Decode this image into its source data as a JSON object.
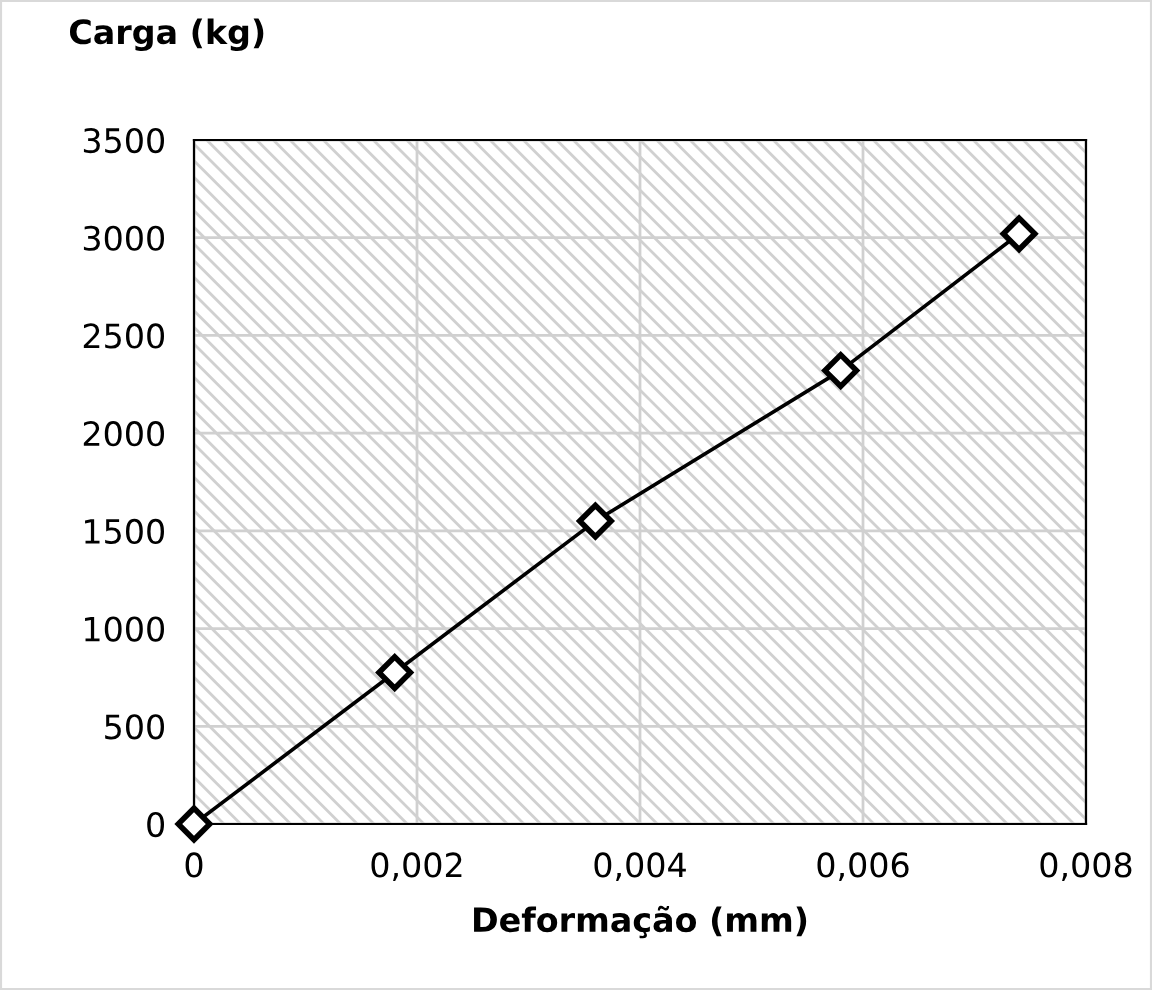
{
  "chart_data": {
    "type": "line",
    "xlabel": "Deformação (mm)",
    "ylabel": "Carga (kg)",
    "x": [
      0,
      0.0018,
      0.0036,
      0.0058,
      0.0074
    ],
    "series": [
      {
        "color": "#000000",
        "values": [
          0,
          775,
          1550,
          2320,
          3020
        ]
      }
    ],
    "xlim": [
      0,
      0.008
    ],
    "xticks": [
      0,
      {
        "value": 0.002,
        "label": "0,002"
      },
      {
        "value": 0.004,
        "label": "0,004"
      },
      {
        "value": 0.006,
        "label": "0,006"
      },
      {
        "value": 0.008,
        "label": "0,008"
      }
    ],
    "ylim": [
      0,
      3500
    ],
    "yticks": [
      0,
      500,
      1000,
      1500,
      2000,
      2500,
      3000,
      3500
    ],
    "grid": true,
    "marker": "diamond",
    "line_style": "solid",
    "legend": false
  }
}
